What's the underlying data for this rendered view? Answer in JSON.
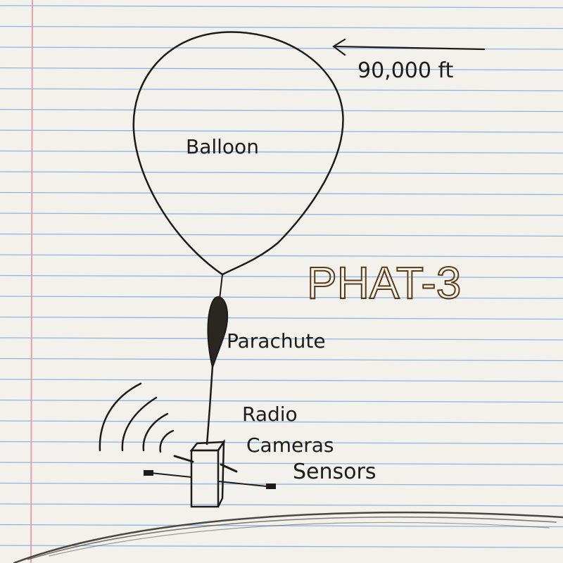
{
  "labels": {
    "altitude": "90,000 ft",
    "balloon": "Balloon",
    "title": "PHAT-3",
    "parachute": "Parachute",
    "radio": "Radio",
    "cameras": "Cameras",
    "sensors": "Sensors"
  },
  "colors": {
    "paper": "#f3f1ec",
    "rule_lines": "#8fb4e0",
    "margin_line": "#e8a0a8",
    "ink": "#1e1c1a",
    "title_ink": "#5a3a14"
  }
}
